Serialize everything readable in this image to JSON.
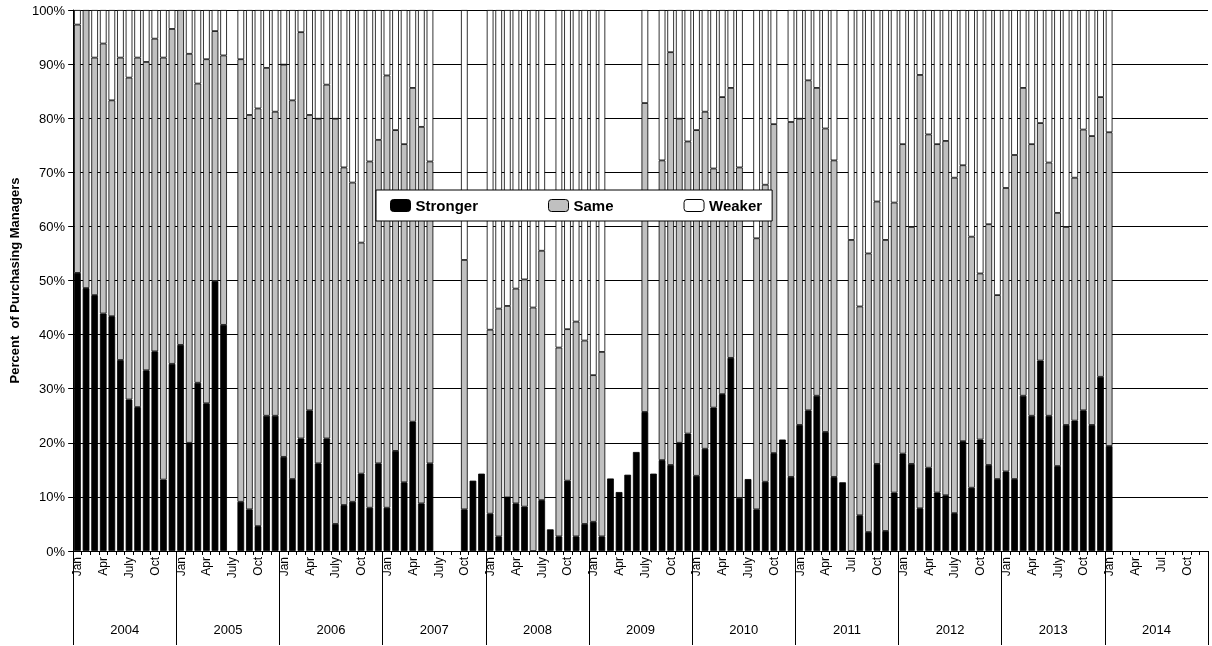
{
  "chart_data": {
    "type": "bar",
    "stacked": true,
    "ylabel": "Percent  of Purchasing Managers",
    "categories": [
      "Jan",
      null,
      null,
      "Apr",
      null,
      null,
      "July",
      null,
      null,
      "Oct",
      null,
      null,
      "Jan",
      null,
      null,
      "Apr",
      null,
      null,
      "July",
      null,
      null,
      "Oct",
      null,
      null,
      "Jan",
      null,
      null,
      "Apr",
      null,
      null,
      "July",
      null,
      null,
      "Oct",
      null,
      null,
      "Jan",
      null,
      null,
      "Apr",
      null,
      null,
      "July",
      null,
      null,
      "Oct",
      null,
      null,
      "Jan",
      null,
      null,
      "Apr",
      null,
      null,
      "July",
      null,
      null,
      "Oct",
      null,
      null,
      "Jan",
      null,
      null,
      "Apr",
      null,
      null,
      "July",
      null,
      null,
      "Oct",
      null,
      null,
      "Jan",
      null,
      null,
      "Apr",
      null,
      null,
      "July",
      null,
      null,
      "Oct",
      null,
      null,
      "Jan",
      null,
      null,
      "Apr",
      null,
      null,
      "Jul",
      null,
      null,
      "Oct",
      null,
      null,
      "Jan",
      null,
      null,
      "Apr",
      null,
      null,
      "July",
      null,
      null,
      "Oct",
      null,
      null,
      "Jan",
      null,
      null,
      "Apr",
      null,
      null,
      "July",
      null,
      null,
      "Oct",
      null,
      null,
      "Jan",
      null,
      null,
      "Apr",
      null,
      null,
      "Jul",
      null,
      null,
      "Oct",
      null,
      null
    ],
    "series": [
      {
        "name": "Stronger",
        "color": "#000000",
        "values": [
          51.4,
          48.6,
          47.3,
          43.9,
          43.4,
          35.3,
          28.0,
          26.6,
          33.4,
          36.9,
          13.2,
          34.6,
          38.1,
          20.0,
          31.1,
          27.3,
          49.9,
          41.8,
          null,
          9.1,
          7.7,
          4.6,
          25.0,
          25.0,
          17.4,
          13.3,
          20.8,
          26.0,
          16.2,
          20.8,
          5.0,
          8.5,
          9.1,
          14.3,
          8.0,
          16.2,
          8.0,
          18.5,
          12.7,
          23.9,
          8.8,
          16.2,
          null,
          null,
          null,
          7.7,
          13.0,
          14.3,
          6.9,
          2.7,
          9.9,
          8.8,
          8.2,
          0,
          9.4,
          4.0,
          2.7,
          13.0,
          2.7,
          5.0,
          5.4,
          2.7,
          13.4,
          10.9,
          14.1,
          18.3,
          25.7,
          14.3,
          16.8,
          15.9,
          20.0,
          21.7,
          13.9,
          18.9,
          26.5,
          29.0,
          35.7,
          9.8,
          13.3,
          7.7,
          12.8,
          18.1,
          20.6,
          13.7,
          23.3,
          26.0,
          28.7,
          22.0,
          13.7,
          12.7,
          0,
          6.6,
          3.5,
          16.1,
          3.7,
          10.8,
          18.0,
          16.1,
          7.9,
          15.4,
          10.8,
          10.3,
          7.0,
          20.3,
          11.7,
          20.6,
          15.9,
          13.3,
          14.7,
          13.3,
          28.7,
          25.0,
          35.2,
          25.0,
          15.7,
          23.3,
          24.1,
          26.0,
          23.3,
          32.2,
          19.4,
          null,
          null,
          null,
          null,
          null,
          null,
          null,
          null,
          null,
          null,
          null
        ]
      },
      {
        "name": "Same",
        "color": "#c0c0c0",
        "values": [
          45.9,
          51.4,
          43.9,
          49.9,
          39.9,
          55.9,
          59.5,
          64.6,
          57.0,
          57.8,
          78.0,
          61.9,
          61.9,
          71.9,
          55.3,
          63.6,
          46.2,
          49.8,
          null,
          81.8,
          72.9,
          77.2,
          64.3,
          56.2,
          72.5,
          70.0,
          75.1,
          54.6,
          63.7,
          65.4,
          74.9,
          62.4,
          59.0,
          42.7,
          64.0,
          59.8,
          79.9,
          59.3,
          62.5,
          61.7,
          69.6,
          55.8,
          null,
          null,
          null,
          46.1,
          null,
          null,
          34.0,
          42.1,
          35.4,
          39.7,
          42.0,
          45.0,
          46.1,
          null,
          34.9,
          28.0,
          39.7,
          33.9,
          27.1,
          34.1,
          null,
          null,
          null,
          null,
          57.1,
          null,
          55.4,
          76.3,
          59.9,
          54.0,
          63.9,
          62.3,
          44.2,
          54.9,
          49.9,
          61.1,
          null,
          50.1,
          54.9,
          60.8,
          null,
          65.6,
          56.6,
          61.0,
          56.9,
          56.1,
          58.5,
          null,
          57.5,
          38.6,
          51.5,
          48.5,
          53.8,
          53.6,
          57.2,
          43.8,
          80.1,
          61.6,
          64.4,
          65.5,
          62.0,
          51.0,
          46.4,
          30.7,
          44.5,
          34.0,
          52.4,
          59.9,
          56.9,
          50.2,
          43.9,
          46.8,
          46.8,
          36.6,
          44.9,
          51.9,
          53.4,
          51.7,
          58.0,
          null,
          null,
          null,
          null,
          null,
          null,
          null,
          null,
          null,
          null,
          null
        ]
      },
      {
        "name": "Weaker",
        "color": "#ffffff",
        "values": [
          2.7,
          0,
          8.8,
          6.2,
          16.7,
          8.8,
          12.5,
          8.8,
          9.6,
          5.3,
          8.8,
          3.5,
          0,
          8.1,
          13.6,
          9.1,
          3.9,
          8.4,
          null,
          9.1,
          19.4,
          18.2,
          10.7,
          18.8,
          10.1,
          16.7,
          4.1,
          19.4,
          20.1,
          13.8,
          20.1,
          29.1,
          31.9,
          43.0,
          28.0,
          24.0,
          12.1,
          22.2,
          24.8,
          14.4,
          21.6,
          28.0,
          null,
          null,
          null,
          46.2,
          null,
          null,
          59.1,
          55.2,
          54.7,
          51.5,
          49.8,
          55.0,
          44.5,
          null,
          62.4,
          59.0,
          57.6,
          61.1,
          67.5,
          63.2,
          null,
          null,
          null,
          null,
          17.2,
          null,
          27.8,
          7.8,
          20.1,
          24.3,
          22.2,
          18.8,
          29.3,
          16.1,
          14.4,
          29.1,
          null,
          42.2,
          32.3,
          21.1,
          null,
          20.7,
          20.1,
          13.0,
          14.4,
          21.9,
          27.8,
          null,
          42.5,
          54.8,
          45.0,
          35.4,
          42.5,
          35.6,
          24.8,
          40.1,
          12.0,
          23.0,
          24.8,
          24.2,
          31.0,
          28.7,
          41.9,
          48.7,
          39.6,
          52.7,
          32.9,
          26.8,
          14.4,
          24.8,
          20.9,
          28.2,
          37.5,
          40.1,
          31.0,
          22.1,
          23.3,
          16.1,
          22.6,
          null,
          null,
          null,
          null,
          null,
          null,
          null,
          null,
          null,
          null,
          null
        ]
      }
    ],
    "ylim": [
      0,
      100
    ],
    "yticks": [
      {
        "value": 0,
        "label": "0%"
      },
      {
        "value": 10,
        "label": "10%"
      },
      {
        "value": 20,
        "label": "20%"
      },
      {
        "value": 30,
        "label": "30%"
      },
      {
        "value": 40,
        "label": "40%"
      },
      {
        "value": 50,
        "label": "50%"
      },
      {
        "value": 60,
        "label": "60%"
      },
      {
        "value": 70,
        "label": "70%"
      },
      {
        "value": 80,
        "label": "80%"
      },
      {
        "value": 90,
        "label": "90%"
      },
      {
        "value": 100,
        "label": "100%"
      }
    ],
    "grid": "y",
    "legend": "top",
    "annotations": [
      "2004",
      "2005",
      "2006",
      "2007",
      "2008",
      "2009",
      "2010",
      "2011",
      "2012",
      "2013",
      "2014"
    ]
  }
}
